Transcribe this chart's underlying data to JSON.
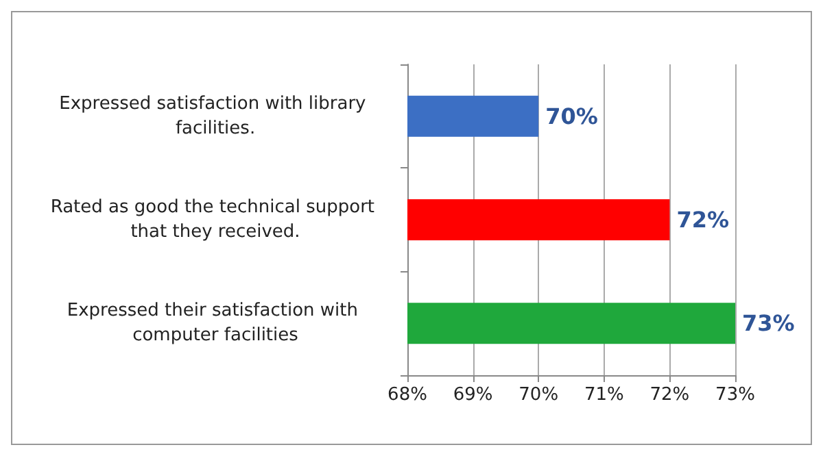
{
  "chart_data": {
    "type": "bar",
    "orientation": "horizontal",
    "categories": [
      "Expressed satisfaction with library facilities.",
      "Rated as good the technical support that they received.",
      "Expressed their satisfaction with computer facilities"
    ],
    "values": [
      70,
      72,
      73
    ],
    "colors": [
      "#3c6fc4",
      "#ff0000",
      "#1fa83c"
    ],
    "value_labels": [
      "70%",
      "72%",
      "73%"
    ],
    "xlim": [
      68,
      73
    ],
    "xticks": [
      {
        "value": 68,
        "label": "68%"
      },
      {
        "value": 69,
        "label": "69%"
      },
      {
        "value": 70,
        "label": "70%"
      },
      {
        "value": 71,
        "label": "71%"
      },
      {
        "value": 72,
        "label": "72%"
      },
      {
        "value": 73,
        "label": "73%"
      }
    ],
    "grid": "x"
  }
}
